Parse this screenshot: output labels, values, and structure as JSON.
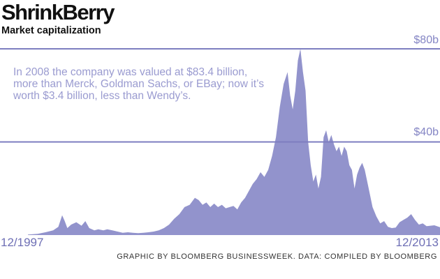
{
  "header": {
    "title": "ShrinkBerry",
    "subtitle": "Market capitalization"
  },
  "annotation": "In 2008 the company was valued at $83.4 billion, more than Merck, Goldman Sachs, or EBay; now it’s worth $3.4 billion, less than Wendy’s.",
  "footer": {
    "credit": "GRAPHIC BY BLOOMBERG BUSINESSWEEK. DATA: COMPILED BY BLOOMBERG"
  },
  "colors": {
    "area": "#9293cc",
    "gridline": "#7d7ec0",
    "text_accent": "#8485c4"
  },
  "chart_data": {
    "type": "area",
    "title": "ShrinkBerry",
    "subtitle": "Market capitalization",
    "xlabel": "",
    "ylabel": "",
    "x_start_label": "12/1997",
    "x_end_label": "12/2013",
    "ytick_labels": [
      "$80b",
      "$40b"
    ],
    "ytick_values": [
      80,
      40
    ],
    "ylim": [
      0,
      80
    ],
    "xlim": [
      1997.92,
      2013.92
    ],
    "grid": true,
    "series": [
      {
        "name": "Market capitalization ($ billions)",
        "x": [
          1997.92,
          1998.3,
          1998.6,
          1998.9,
          1999.1,
          1999.25,
          1999.35,
          1999.45,
          1999.6,
          1999.8,
          2000.0,
          2000.15,
          2000.3,
          2000.5,
          2000.65,
          2000.85,
          2001.0,
          2001.2,
          2001.4,
          2001.6,
          2001.8,
          2002.0,
          2002.2,
          2002.4,
          2002.6,
          2002.8,
          2003.0,
          2003.2,
          2003.4,
          2003.6,
          2003.8,
          2004.0,
          2004.2,
          2004.4,
          2004.55,
          2004.7,
          2004.85,
          2005.0,
          2005.15,
          2005.3,
          2005.45,
          2005.6,
          2005.75,
          2005.9,
          2006.05,
          2006.2,
          2006.35,
          2006.5,
          2006.65,
          2006.8,
          2006.95,
          2007.1,
          2007.25,
          2007.4,
          2007.55,
          2007.7,
          2007.85,
          2008.0,
          2008.1,
          2008.2,
          2008.3,
          2008.4,
          2008.5,
          2008.6,
          2008.7,
          2008.8,
          2008.9,
          2009.0,
          2009.1,
          2009.2,
          2009.3,
          2009.4,
          2009.5,
          2009.6,
          2009.7,
          2009.8,
          2009.9,
          2010.0,
          2010.1,
          2010.2,
          2010.3,
          2010.4,
          2010.5,
          2010.6,
          2010.7,
          2010.8,
          2010.9,
          2011.0,
          2011.15,
          2011.3,
          2011.45,
          2011.6,
          2011.75,
          2011.9,
          2012.05,
          2012.2,
          2012.35,
          2012.5,
          2012.65,
          2012.8,
          2012.95,
          2013.1,
          2013.25,
          2013.4,
          2013.55,
          2013.7,
          2013.92
        ],
        "values": [
          0.2,
          0.5,
          1.2,
          2.0,
          3.5,
          8.5,
          6.0,
          3.0,
          4.5,
          5.5,
          4.0,
          6.0,
          3.0,
          2.0,
          2.5,
          2.0,
          2.5,
          2.0,
          1.5,
          1.0,
          1.2,
          1.0,
          0.8,
          1.0,
          1.2,
          1.5,
          2.0,
          3.0,
          4.5,
          7.0,
          9.0,
          12.0,
          13.0,
          16.0,
          15.0,
          13.0,
          14.0,
          12.0,
          13.5,
          12.0,
          13.0,
          11.5,
          12.0,
          12.5,
          11.0,
          14.0,
          16.0,
          19.0,
          22.0,
          24.0,
          27.0,
          25.0,
          28.0,
          34.0,
          42.0,
          55.0,
          65.0,
          70.0,
          60.0,
          54.0,
          62.0,
          75.0,
          80.0,
          70.0,
          62.0,
          40.0,
          30.0,
          23.0,
          26.0,
          20.0,
          25.0,
          42.0,
          45.0,
          40.0,
          43.0,
          39.0,
          36.0,
          38.0,
          34.0,
          38.0,
          36.0,
          30.0,
          28.0,
          20.0,
          26.0,
          29.0,
          31.0,
          28.0,
          20.0,
          12.0,
          8.0,
          5.0,
          6.0,
          3.5,
          3.0,
          3.2,
          5.5,
          6.5,
          7.5,
          9.0,
          6.5,
          4.5,
          5.0,
          3.8,
          4.0,
          4.2,
          3.4
        ]
      }
    ]
  }
}
